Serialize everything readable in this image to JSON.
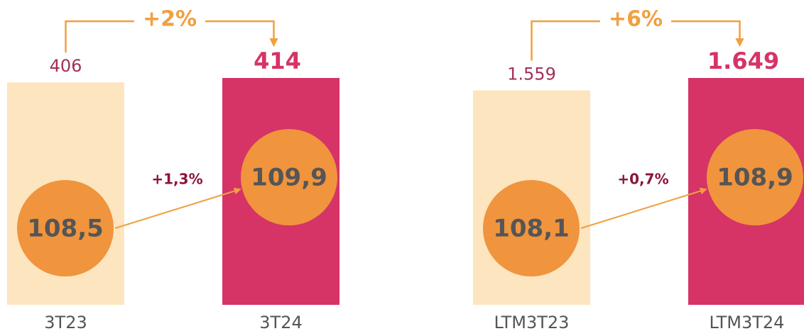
{
  "chart_data": [
    {
      "type": "bar",
      "categories": [
        "3T23",
        "3T24"
      ],
      "values": [
        406,
        414
      ],
      "value_labels": [
        "406",
        "414"
      ],
      "colors": [
        "#fce5bf",
        "#d63366"
      ],
      "change": "+2%",
      "index_values": [
        108.5,
        109.9
      ],
      "index_labels": [
        "108,5",
        "109,9"
      ],
      "index_color": "#f0943e",
      "index_change": "+1,3%"
    },
    {
      "type": "bar",
      "categories": [
        "LTM3T23",
        "LTM3T24"
      ],
      "values": [
        1559,
        1649
      ],
      "value_labels": [
        "1.559",
        "1.649"
      ],
      "colors": [
        "#fce5bf",
        "#d63366"
      ],
      "change": "+6%",
      "index_values": [
        108.1,
        108.9
      ],
      "index_labels": [
        "108,1",
        "108,9"
      ],
      "index_color": "#f0943e",
      "index_change": "+0,7%"
    }
  ]
}
